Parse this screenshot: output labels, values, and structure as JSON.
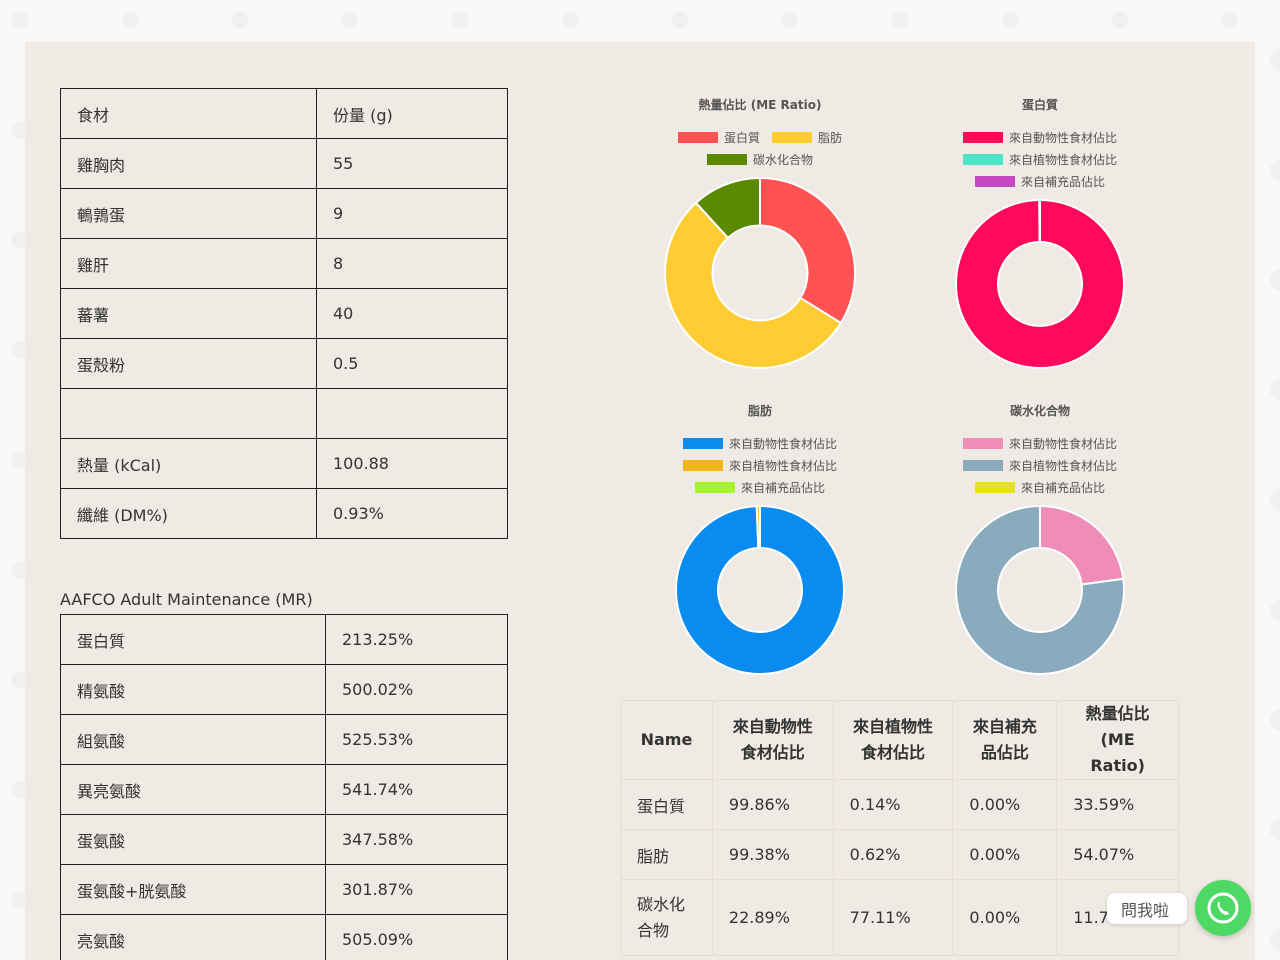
{
  "ingredients_table": {
    "header": [
      "食材",
      "份量 (g)"
    ],
    "rows": [
      [
        "雞胸肉",
        "55"
      ],
      [
        "鵪鶉蛋",
        "9"
      ],
      [
        "雞肝",
        "8"
      ],
      [
        "蕃薯",
        "40"
      ],
      [
        "蛋殼粉",
        "0.5"
      ],
      [
        "",
        ""
      ],
      [
        "熱量 (kCal)",
        "100.88"
      ],
      [
        "纖維 (DM%)",
        "0.93%"
      ]
    ]
  },
  "aafco": {
    "title": "AAFCO Adult Maintenance (MR)",
    "rows": [
      [
        "蛋白質",
        "213.25%"
      ],
      [
        "精氨酸",
        "500.02%"
      ],
      [
        "組氨酸",
        "525.53%"
      ],
      [
        "異亮氨酸",
        "541.74%"
      ],
      [
        "蛋氨酸",
        "347.58%"
      ],
      [
        "蛋氨酸+胱氨酸",
        "301.87%"
      ],
      [
        "亮氨酸",
        "505.09%"
      ]
    ]
  },
  "chart_data": [
    {
      "type": "pie",
      "title": "熱量佔比 (ME Ratio)",
      "categories": [
        "蛋白質",
        "脂肪",
        "碳水化合物"
      ],
      "values": [
        33.59,
        54.07,
        11.7
      ],
      "colors": [
        "#ff5252",
        "#ffcd33",
        "#5b8a00"
      ],
      "legend_rows": [
        [
          0,
          1
        ],
        [
          2
        ]
      ]
    },
    {
      "type": "pie",
      "title": "蛋白質",
      "categories": [
        "來自動物性食材佔比",
        "來自植物性食材佔比",
        "來自補充品佔比"
      ],
      "values": [
        99.86,
        0.14,
        0.0
      ],
      "colors": [
        "#ff0a5a",
        "#4fe3c8",
        "#c548c0"
      ],
      "legend_rows": [
        [
          0
        ],
        [
          1
        ],
        [
          2
        ]
      ]
    },
    {
      "type": "pie",
      "title": "脂肪",
      "categories": [
        "來自動物性食材佔比",
        "來自植物性食材佔比",
        "來自補充品佔比"
      ],
      "values": [
        99.38,
        0.62,
        0.0
      ],
      "colors": [
        "#0a8bf0",
        "#f2b61d",
        "#a6f22e"
      ],
      "legend_rows": [
        [
          0
        ],
        [
          1
        ],
        [
          2
        ]
      ]
    },
    {
      "type": "pie",
      "title": "碳水化合物",
      "categories": [
        "來自動物性食材佔比",
        "來自植物性食材佔比",
        "來自補充品佔比"
      ],
      "values": [
        22.89,
        77.11,
        0.0
      ],
      "colors": [
        "#f08cb8",
        "#8aaabe",
        "#e5e020"
      ],
      "legend_rows": [
        [
          0
        ],
        [
          1
        ],
        [
          2
        ]
      ]
    }
  ],
  "summary_table": {
    "headers": [
      "Name",
      "來自動物性\n食材佔比",
      "來自植物性\n食材佔比",
      "來自補充\n品佔比",
      "熱量佔比\n(ME Ratio)"
    ],
    "rows": [
      [
        "蛋白質",
        "99.86%",
        "0.14%",
        "0.00%",
        "33.59%"
      ],
      [
        "脂肪",
        "99.38%",
        "0.62%",
        "0.00%",
        "54.07%"
      ],
      [
        "碳水化\n合物",
        "22.89%",
        "77.11%",
        "0.00%",
        "11.7"
      ]
    ]
  },
  "chat_widget": {
    "label": "問我啦",
    "icon": "phone-icon",
    "color": "#4cd964"
  }
}
